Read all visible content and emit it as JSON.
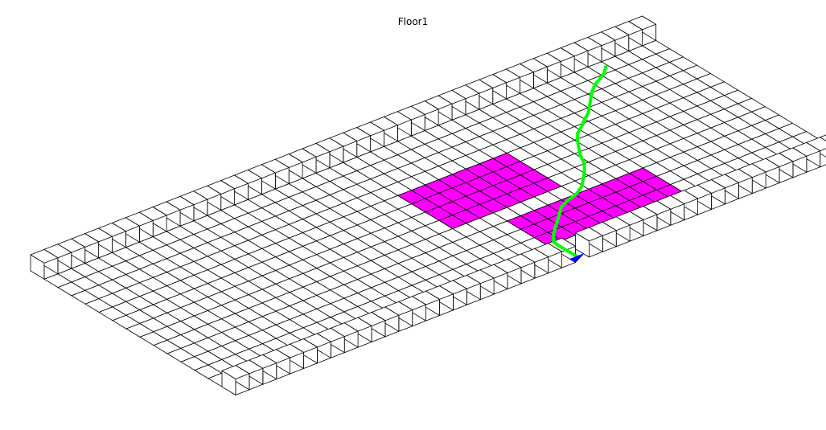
{
  "title": "Floor1",
  "colors": {
    "background": "#ffffff",
    "grid_line": "#000000",
    "wall_face": "#ffffff",
    "obstacle": "#ff00ff",
    "path": "#00ff00",
    "start_marker": "#0000ff"
  },
  "floor": {
    "columns": 45,
    "rows": 15,
    "walls": {
      "back_row": "full",
      "front_row": "full",
      "door_gap_column": 25
    }
  },
  "obstacles": [
    {
      "name": "obstacle-upper",
      "cells": [
        [
          22,
          5
        ],
        [
          23,
          5
        ],
        [
          24,
          5
        ],
        [
          25,
          5
        ],
        [
          26,
          5
        ],
        [
          27,
          5
        ],
        [
          28,
          5
        ],
        [
          29,
          5
        ],
        [
          22,
          6
        ],
        [
          23,
          6
        ],
        [
          24,
          6
        ],
        [
          25,
          6
        ],
        [
          26,
          6
        ],
        [
          27,
          6
        ],
        [
          28,
          6
        ],
        [
          29,
          6
        ],
        [
          22,
          7
        ],
        [
          23,
          7
        ],
        [
          24,
          7
        ],
        [
          25,
          7
        ],
        [
          26,
          7
        ],
        [
          27,
          7
        ],
        [
          28,
          7
        ],
        [
          29,
          7
        ],
        [
          22,
          8
        ],
        [
          23,
          8
        ],
        [
          24,
          8
        ],
        [
          25,
          8
        ],
        [
          26,
          8
        ],
        [
          27,
          8
        ],
        [
          28,
          8
        ],
        [
          29,
          8
        ]
      ]
    },
    {
      "name": "obstacle-lower",
      "cells": [
        [
          25,
          10
        ],
        [
          26,
          10
        ],
        [
          27,
          10
        ],
        [
          28,
          10
        ],
        [
          29,
          10
        ],
        [
          30,
          10
        ],
        [
          31,
          10
        ],
        [
          32,
          10
        ],
        [
          33,
          10
        ],
        [
          34,
          10
        ],
        [
          25,
          11
        ],
        [
          26,
          11
        ],
        [
          27,
          11
        ],
        [
          28,
          11
        ],
        [
          29,
          11
        ],
        [
          30,
          11
        ],
        [
          31,
          11
        ],
        [
          32,
          11
        ],
        [
          33,
          11
        ],
        [
          34,
          11
        ],
        [
          25,
          12
        ],
        [
          26,
          12
        ],
        [
          27,
          12
        ],
        [
          28,
          12
        ],
        [
          29,
          12
        ],
        [
          30,
          12
        ],
        [
          31,
          12
        ],
        [
          32,
          12
        ],
        [
          33,
          12
        ],
        [
          34,
          12
        ]
      ]
    }
  ],
  "path": {
    "cells": [
      [
        25,
        14.2
      ],
      [
        25,
        13.3
      ],
      [
        25,
        12.4
      ],
      [
        25.6,
        11.8
      ],
      [
        26.4,
        11.2
      ],
      [
        27.2,
        10.6
      ],
      [
        28,
        10
      ],
      [
        28.8,
        9.7
      ],
      [
        29.6,
        9.5
      ],
      [
        30.4,
        9.1
      ],
      [
        31,
        8.6
      ],
      [
        31.6,
        8.1
      ],
      [
        32.2,
        7.5
      ],
      [
        32.6,
        6.8
      ],
      [
        33.1,
        6.2
      ],
      [
        33.6,
        5.6
      ],
      [
        34.1,
        5.1
      ],
      [
        34.8,
        4.7
      ],
      [
        35.4,
        4.3
      ],
      [
        36.1,
        3.9
      ],
      [
        36.7,
        3.4
      ],
      [
        37.3,
        2.9
      ],
      [
        37.9,
        2.4
      ],
      [
        38.5,
        2
      ],
      [
        39.2,
        1.7
      ],
      [
        39.8,
        1.4
      ],
      [
        40.3,
        1
      ]
    ]
  },
  "start": {
    "column": 25,
    "row": 14
  }
}
